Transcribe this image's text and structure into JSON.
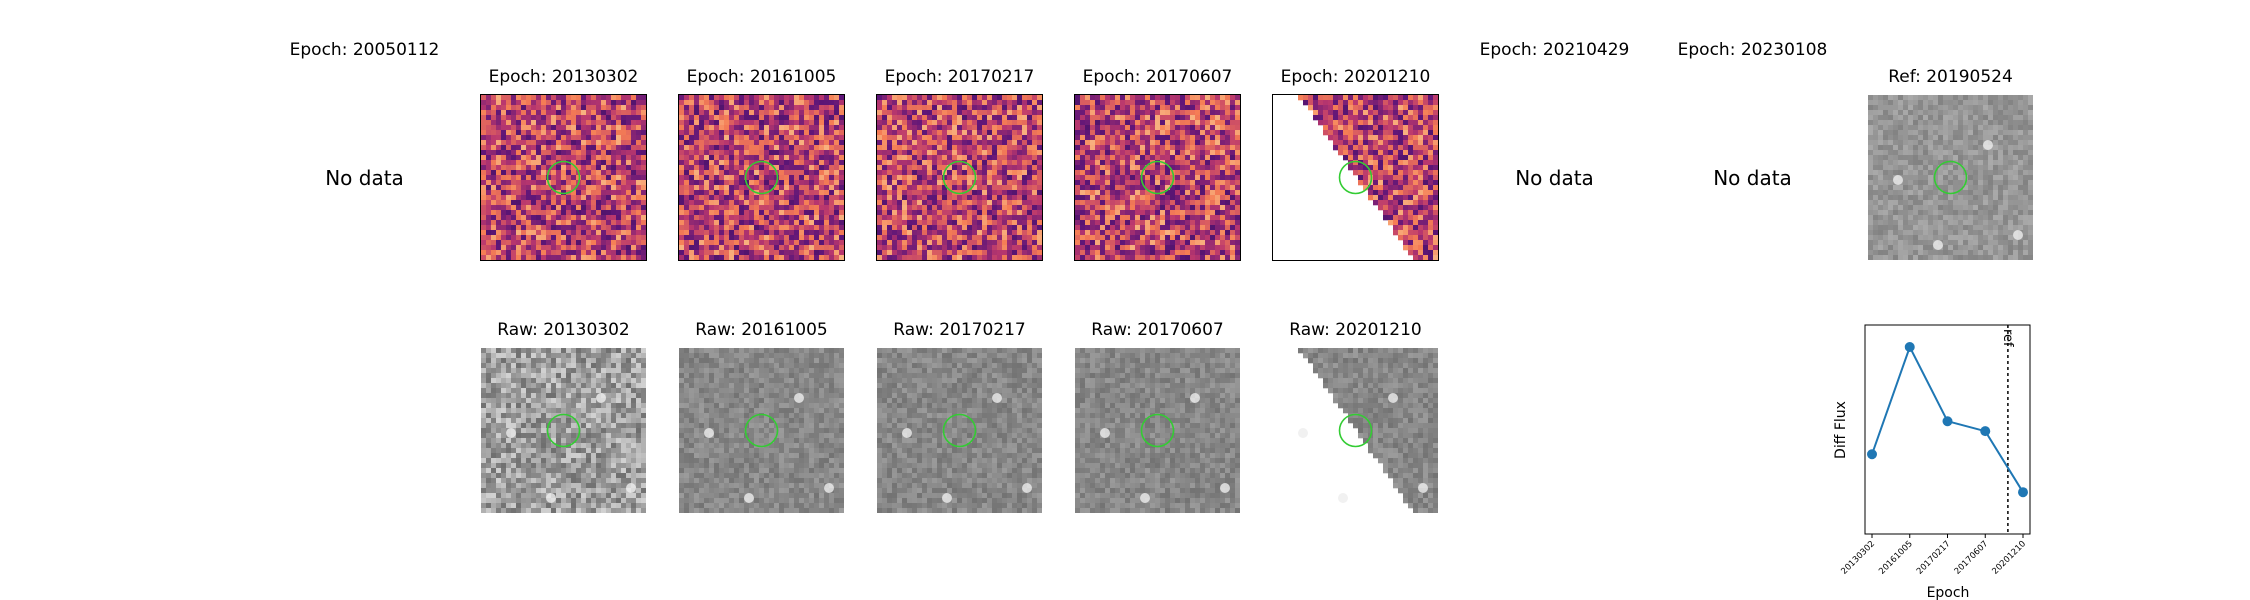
{
  "top_row": [
    {
      "title": "Epoch: 20050112",
      "has_data": false,
      "no_data_text": "No data"
    },
    {
      "title": "Epoch: 20130302",
      "has_data": true
    },
    {
      "title": "Epoch: 20161005",
      "has_data": true
    },
    {
      "title": "Epoch: 20170217",
      "has_data": true
    },
    {
      "title": "Epoch: 20170607",
      "has_data": true
    },
    {
      "title": "Epoch: 20201210",
      "has_data": true
    },
    {
      "title": "Epoch: 20210429",
      "has_data": false,
      "no_data_text": "No data"
    },
    {
      "title": "Epoch: 20230108",
      "has_data": false,
      "no_data_text": "No data"
    },
    {
      "title": "Ref: 20190524",
      "has_data": true
    }
  ],
  "bottom_row": [
    {
      "title": "Raw: 20130302"
    },
    {
      "title": "Raw: 20161005"
    },
    {
      "title": "Raw: 20170217"
    },
    {
      "title": "Raw: 20170607"
    },
    {
      "title": "Raw: 20201210"
    }
  ],
  "marker_color": "#33cc33",
  "chart_data": {
    "type": "line",
    "categories": [
      "20130302",
      "20161005",
      "20170217",
      "20170607",
      "20201210"
    ],
    "values": [
      0.35,
      1.0,
      0.55,
      0.49,
      0.12
    ],
    "xlabel": "Epoch",
    "ylabel": "Diff Flux",
    "ref_label": "ref",
    "ref_position_index": 3.6,
    "line_color": "#1f77b4"
  }
}
